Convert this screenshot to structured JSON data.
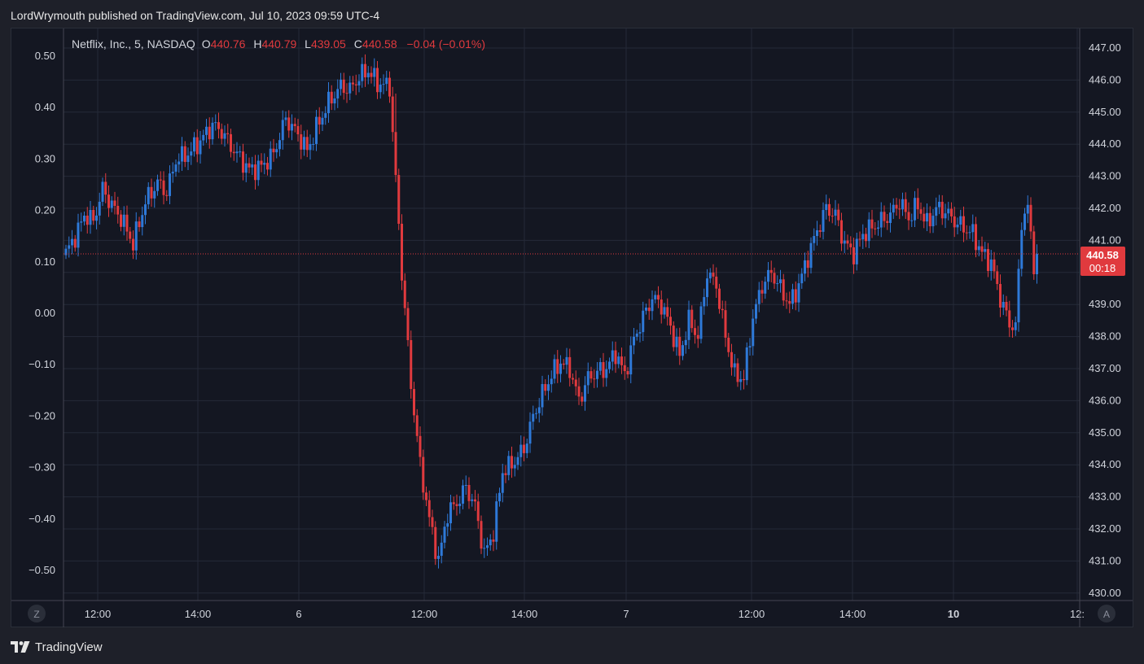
{
  "header": {
    "publish_text": "LordWrymouth published on TradingView.com, Jul 10, 2023 09:59 UTC-4"
  },
  "legend": {
    "symbol": "Netflix, Inc., 5, NASDAQ",
    "o_label": "O",
    "o_value": "440.76",
    "h_label": "H",
    "h_value": "440.79",
    "l_label": "L",
    "l_value": "439.05",
    "c_label": "C",
    "c_value": "440.58",
    "change": "−0.04 (−0.01%)"
  },
  "price_badge": {
    "price": "440.58",
    "countdown": "00:18"
  },
  "buttons": {
    "left": "Z",
    "right": "A"
  },
  "footer": {
    "brand": "TradingView"
  },
  "colors": {
    "up": "#2e79d8",
    "down": "#e03a3e",
    "grid": "#252a38",
    "text": "#d1d4dc",
    "badge": "#e03a3e"
  },
  "chart_data": {
    "type": "candlestick",
    "symbol": "NFLX",
    "interval": "5",
    "right_axis": {
      "ticks": [
        "447.00",
        "446.00",
        "445.00",
        "444.00",
        "443.00",
        "442.00",
        "441.00",
        "440.00",
        "439.00",
        "438.00",
        "437.00",
        "436.00",
        "435.00",
        "434.00",
        "433.00",
        "432.00",
        "431.00",
        "430.00"
      ],
      "range": [
        429.6,
        447.5
      ]
    },
    "left_axis": {
      "ticks": [
        "0.50",
        "0.40",
        "0.30",
        "0.20",
        "0.10",
        "0.00",
        "−0.10",
        "−0.20",
        "−0.30",
        "−0.40",
        "−0.50"
      ],
      "range": [
        -0.56,
        0.58
      ]
    },
    "time_axis": {
      "labels": [
        "12:00",
        "14:00",
        "6",
        "12:00",
        "14:00",
        "7",
        "12:00",
        "14:00",
        "10",
        "12:"
      ],
      "bold": [
        false,
        false,
        false,
        false,
        false,
        false,
        false,
        false,
        true,
        false
      ]
    },
    "last_price": 440.58,
    "anchors": [
      [
        0,
        440.6
      ],
      [
        4,
        441.3
      ],
      [
        6,
        441.8
      ],
      [
        9,
        441.6
      ],
      [
        12,
        442.6
      ],
      [
        15,
        442.1
      ],
      [
        18,
        441.7
      ],
      [
        22,
        440.9
      ],
      [
        26,
        442.2
      ],
      [
        30,
        442.8
      ],
      [
        33,
        442.5
      ],
      [
        36,
        443.5
      ],
      [
        40,
        443.7
      ],
      [
        44,
        444.1
      ],
      [
        48,
        444.6
      ],
      [
        51,
        444.4
      ],
      [
        55,
        443.8
      ],
      [
        60,
        443.2
      ],
      [
        64,
        443.3
      ],
      [
        68,
        443.7
      ],
      [
        72,
        444.8
      ],
      [
        76,
        444.3
      ],
      [
        79,
        443.8
      ],
      [
        82,
        444.5
      ],
      [
        86,
        445.3
      ],
      [
        90,
        445.8
      ],
      [
        93,
        445.7
      ],
      [
        96,
        446.1
      ],
      [
        99,
        446.3
      ],
      [
        102,
        445.9
      ],
      [
        106,
        445.8
      ],
      [
        110,
        440.0
      ],
      [
        113,
        436.5
      ],
      [
        116,
        434.0
      ],
      [
        119,
        432.3
      ],
      [
        122,
        431.0
      ],
      [
        125,
        432.5
      ],
      [
        128,
        432.8
      ],
      [
        131,
        433.3
      ],
      [
        134,
        432.7
      ],
      [
        137,
        431.2
      ],
      [
        140,
        431.9
      ],
      [
        143,
        433.8
      ],
      [
        146,
        434.0
      ],
      [
        150,
        434.5
      ],
      [
        153,
        435.5
      ],
      [
        156,
        436.2
      ],
      [
        159,
        436.8
      ],
      [
        162,
        437.2
      ],
      [
        165,
        437.0
      ],
      [
        168,
        436.0
      ],
      [
        171,
        436.7
      ],
      [
        174,
        436.9
      ],
      [
        177,
        437.0
      ],
      [
        180,
        437.5
      ],
      [
        183,
        436.8
      ],
      [
        186,
        437.9
      ],
      [
        189,
        438.6
      ],
      [
        192,
        439.2
      ],
      [
        195,
        439.0
      ],
      [
        198,
        438.3
      ],
      [
        201,
        437.4
      ],
      [
        204,
        438.5
      ],
      [
        207,
        438.0
      ],
      [
        210,
        440.0
      ],
      [
        213,
        439.6
      ],
      [
        216,
        438.0
      ],
      [
        219,
        436.8
      ],
      [
        222,
        436.7
      ],
      [
        225,
        438.6
      ],
      [
        228,
        439.6
      ],
      [
        231,
        440.0
      ],
      [
        234,
        439.5
      ],
      [
        237,
        439.0
      ],
      [
        240,
        439.6
      ],
      [
        243,
        440.5
      ],
      [
        246,
        441.3
      ],
      [
        249,
        442.0
      ],
      [
        252,
        441.8
      ],
      [
        255,
        440.9
      ],
      [
        258,
        440.6
      ],
      [
        261,
        441.2
      ],
      [
        264,
        441.4
      ],
      [
        267,
        441.6
      ],
      [
        270,
        441.8
      ],
      [
        273,
        442.2
      ],
      [
        276,
        441.7
      ],
      [
        279,
        442.1
      ],
      [
        282,
        441.5
      ],
      [
        285,
        442.0
      ],
      [
        288,
        441.9
      ],
      [
        291,
        441.6
      ],
      [
        294,
        441.4
      ],
      [
        297,
        441.2
      ],
      [
        300,
        440.6
      ],
      [
        303,
        440.3
      ],
      [
        306,
        439.2
      ],
      [
        309,
        438.4
      ],
      [
        311,
        438.3
      ],
      [
        313,
        441.6
      ],
      [
        315,
        442.0
      ],
      [
        317,
        440.3
      ],
      [
        318,
        440.6
      ]
    ]
  }
}
